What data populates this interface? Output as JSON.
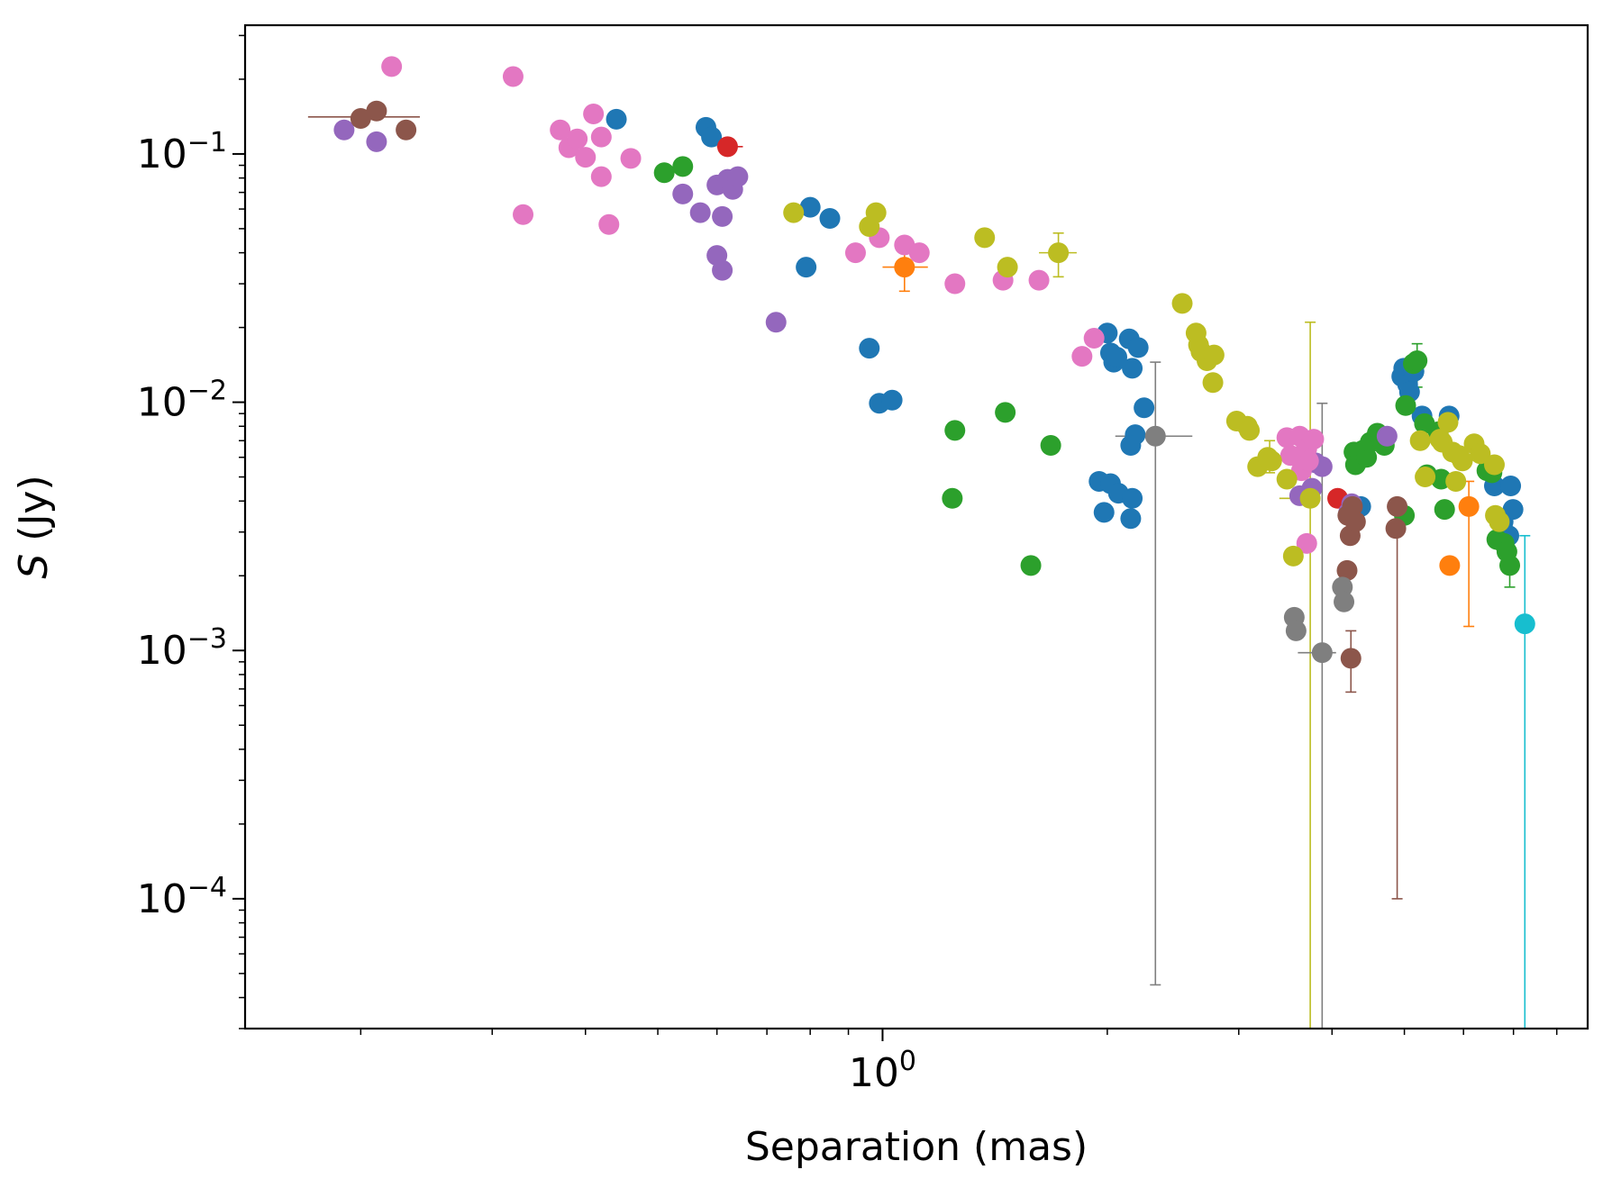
{
  "chart_data": {
    "type": "scatter",
    "title": "",
    "xlabel": "Separation (mas)",
    "ylabel": "S (Jy)",
    "x_scale": "log",
    "y_scale": "log",
    "xlim": [
      0.14,
      8.8
    ],
    "ylim": [
      3e-05,
      0.33
    ],
    "x_major_ticks": [
      {
        "value": 1,
        "base": "10",
        "exp": "0"
      }
    ],
    "y_major_ticks": [
      {
        "value": 0.1,
        "base": "10",
        "exp": "−1"
      },
      {
        "value": 0.01,
        "base": "10",
        "exp": "−2"
      },
      {
        "value": 0.001,
        "base": "10",
        "exp": "−3"
      },
      {
        "value": 0.0001,
        "base": "10",
        "exp": "−4"
      }
    ],
    "grid": false,
    "legend": "none",
    "series": [
      {
        "name": "blue",
        "color": "#1f77b4",
        "points": [
          [
            0.44,
            0.138
          ],
          [
            0.58,
            0.128
          ],
          [
            0.59,
            0.117
          ],
          [
            0.79,
            0.035
          ],
          [
            0.8,
            0.061
          ],
          [
            0.85,
            0.055
          ],
          [
            0.96,
            0.0165
          ],
          [
            0.99,
            0.0099
          ],
          [
            1.03,
            0.0102
          ],
          [
            2.0,
            0.019
          ],
          [
            2.02,
            0.0158
          ],
          [
            2.04,
            0.0145
          ],
          [
            2.06,
            0.0152
          ],
          [
            2.14,
            0.018
          ],
          [
            2.16,
            0.0137
          ],
          [
            2.2,
            0.0166
          ],
          [
            2.24,
            0.0095
          ],
          [
            2.18,
            0.0074
          ],
          [
            2.15,
            0.0067
          ],
          [
            1.95,
            0.0048
          ],
          [
            1.98,
            0.0036
          ],
          [
            2.02,
            0.0047
          ],
          [
            2.07,
            0.0043
          ],
          [
            2.15,
            0.0034
          ],
          [
            2.16,
            0.0041
          ],
          [
            4.96,
            0.0127
          ],
          [
            4.99,
            0.0137
          ],
          [
            5.05,
            0.0118
          ],
          [
            5.08,
            0.011
          ],
          [
            5.15,
            0.0133
          ],
          [
            5.28,
            0.0088
          ],
          [
            5.74,
            0.0088
          ],
          [
            4.37,
            0.0038
          ],
          [
            6.6,
            0.0046
          ],
          [
            6.94,
            0.0046
          ],
          [
            6.99,
            0.0037
          ],
          [
            6.78,
            0.0033
          ],
          [
            6.9,
            0.0029
          ]
        ]
      },
      {
        "name": "orange",
        "color": "#ff7f0e",
        "points": [
          [
            1.07,
            0.035
          ],
          [
            6.1,
            0.0038
          ],
          [
            5.75,
            0.0022
          ]
        ]
      },
      {
        "name": "green",
        "color": "#2ca02c",
        "points": [
          [
            0.51,
            0.084
          ],
          [
            0.54,
            0.089
          ],
          [
            1.25,
            0.0077
          ],
          [
            1.24,
            0.0041
          ],
          [
            1.46,
            0.0091
          ],
          [
            1.58,
            0.0022
          ],
          [
            1.68,
            0.0067
          ],
          [
            4.28,
            0.0063
          ],
          [
            4.3,
            0.0056
          ],
          [
            4.36,
            0.0059
          ],
          [
            4.4,
            0.0064
          ],
          [
            4.45,
            0.006
          ],
          [
            4.5,
            0.0069
          ],
          [
            4.6,
            0.0075
          ],
          [
            4.65,
            0.0071
          ],
          [
            4.7,
            0.0067
          ],
          [
            5.02,
            0.0097
          ],
          [
            5.14,
            0.0143
          ],
          [
            5.2,
            0.0147
          ],
          [
            5.32,
            0.0082
          ],
          [
            5.36,
            0.0051
          ],
          [
            5.55,
            0.0076
          ],
          [
            5.6,
            0.0049
          ],
          [
            5.66,
            0.0037
          ],
          [
            5.0,
            0.0035
          ],
          [
            6.45,
            0.0053
          ],
          [
            6.55,
            0.0052
          ],
          [
            6.65,
            0.0028
          ],
          [
            6.8,
            0.0027
          ],
          [
            6.86,
            0.0025
          ],
          [
            6.92,
            0.0022
          ]
        ]
      },
      {
        "name": "red",
        "color": "#d62728",
        "points": [
          [
            0.62,
            0.107
          ],
          [
            4.07,
            0.0041
          ]
        ]
      },
      {
        "name": "purple",
        "color": "#9467bd",
        "points": [
          [
            0.19,
            0.125
          ],
          [
            0.21,
            0.112
          ],
          [
            0.54,
            0.069
          ],
          [
            0.57,
            0.058
          ],
          [
            0.6,
            0.075
          ],
          [
            0.62,
            0.079
          ],
          [
            0.63,
            0.072
          ],
          [
            0.64,
            0.081
          ],
          [
            0.61,
            0.056
          ],
          [
            0.6,
            0.039
          ],
          [
            0.61,
            0.034
          ],
          [
            0.72,
            0.021
          ],
          [
            3.62,
            0.0042
          ],
          [
            3.76,
            0.0045
          ],
          [
            3.8,
            0.0057
          ],
          [
            3.88,
            0.0055
          ],
          [
            4.21,
            0.0036
          ],
          [
            4.25,
            0.0039
          ],
          [
            4.74,
            0.0073
          ]
        ]
      },
      {
        "name": "brown",
        "color": "#8c564b",
        "points": [
          [
            0.2,
            0.139
          ],
          [
            0.21,
            0.149
          ],
          [
            0.23,
            0.125
          ],
          [
            4.2,
            0.0035
          ],
          [
            4.23,
            0.0029
          ],
          [
            4.26,
            0.0038
          ],
          [
            4.3,
            0.0033
          ],
          [
            4.24,
            0.00093
          ],
          [
            4.89,
            0.0038
          ],
          [
            4.87,
            0.0031
          ],
          [
            4.19,
            0.0021
          ]
        ]
      },
      {
        "name": "pink",
        "color": "#e377c2",
        "points": [
          [
            0.22,
            0.225
          ],
          [
            0.32,
            0.205
          ],
          [
            0.33,
            0.057
          ],
          [
            0.37,
            0.125
          ],
          [
            0.38,
            0.106
          ],
          [
            0.39,
            0.115
          ],
          [
            0.4,
            0.097
          ],
          [
            0.41,
            0.145
          ],
          [
            0.42,
            0.117
          ],
          [
            0.42,
            0.081
          ],
          [
            0.43,
            0.052
          ],
          [
            0.46,
            0.096
          ],
          [
            0.92,
            0.04
          ],
          [
            0.99,
            0.046
          ],
          [
            1.07,
            0.043
          ],
          [
            1.12,
            0.04
          ],
          [
            1.25,
            0.03
          ],
          [
            1.45,
            0.031
          ],
          [
            1.62,
            0.031
          ],
          [
            1.85,
            0.0153
          ],
          [
            1.92,
            0.0181
          ],
          [
            3.48,
            0.0072
          ],
          [
            3.62,
            0.0073
          ],
          [
            3.64,
            0.0053
          ],
          [
            3.66,
            0.0062
          ],
          [
            3.7,
            0.0065
          ],
          [
            3.72,
            0.0058
          ],
          [
            3.78,
            0.0071
          ],
          [
            3.7,
            0.0027
          ],
          [
            3.52,
            0.0061
          ]
        ]
      },
      {
        "name": "gray",
        "color": "#7f7f7f",
        "points": [
          [
            2.32,
            0.0073
          ],
          [
            3.56,
            0.00136
          ],
          [
            3.58,
            0.0012
          ],
          [
            3.88,
            0.00098
          ],
          [
            4.13,
            0.0018
          ],
          [
            4.15,
            0.00157
          ]
        ]
      },
      {
        "name": "olive",
        "color": "#bcbd22",
        "points": [
          [
            0.76,
            0.058
          ],
          [
            0.96,
            0.051
          ],
          [
            0.98,
            0.058
          ],
          [
            1.37,
            0.046
          ],
          [
            1.47,
            0.035
          ],
          [
            1.72,
            0.04
          ],
          [
            2.52,
            0.025
          ],
          [
            2.63,
            0.019
          ],
          [
            2.65,
            0.017
          ],
          [
            2.67,
            0.016
          ],
          [
            2.72,
            0.0147
          ],
          [
            2.78,
            0.0155
          ],
          [
            2.77,
            0.012
          ],
          [
            2.98,
            0.0084
          ],
          [
            3.08,
            0.008
          ],
          [
            3.1,
            0.0077
          ],
          [
            3.18,
            0.0055
          ],
          [
            3.28,
            0.006
          ],
          [
            3.32,
            0.0058
          ],
          [
            3.48,
            0.0049
          ],
          [
            3.55,
            0.0024
          ],
          [
            3.74,
            0.0041
          ],
          [
            5.25,
            0.007
          ],
          [
            5.33,
            0.005
          ],
          [
            5.58,
            0.0071
          ],
          [
            5.62,
            0.0069
          ],
          [
            5.72,
            0.0083
          ],
          [
            5.8,
            0.0063
          ],
          [
            5.92,
            0.0061
          ],
          [
            5.98,
            0.0058
          ],
          [
            6.2,
            0.0068
          ],
          [
            6.32,
            0.0062
          ],
          [
            5.86,
            0.0048
          ],
          [
            6.6,
            0.0056
          ],
          [
            6.62,
            0.0035
          ],
          [
            6.7,
            0.0033
          ]
        ]
      },
      {
        "name": "cyan",
        "color": "#17becf",
        "points": [
          [
            7.25,
            0.00128
          ]
        ]
      }
    ],
    "error_bars": [
      {
        "series": "brown",
        "x": [
          0.17,
          0.24
        ],
        "y": [
          0.141,
          0.141
        ]
      },
      {
        "series": "red",
        "x": [
          0.6,
          0.65
        ],
        "y": [
          0.107,
          0.107
        ]
      },
      {
        "series": "orange",
        "x": [
          1.0,
          1.15
        ],
        "y": [
          0.035,
          0.035
        ]
      },
      {
        "series": "orange",
        "x": [
          1.07,
          1.07
        ],
        "y": [
          0.028,
          0.042
        ]
      },
      {
        "series": "olive",
        "x": [
          1.62,
          1.82
        ],
        "y": [
          0.04,
          0.04
        ]
      },
      {
        "series": "olive",
        "x": [
          1.72,
          1.72
        ],
        "y": [
          0.032,
          0.048
        ]
      },
      {
        "series": "gray",
        "x": [
          2.32,
          2.32
        ],
        "y": [
          4.5e-05,
          0.0145
        ]
      },
      {
        "series": "gray",
        "x": [
          2.05,
          2.6
        ],
        "y": [
          0.0073,
          0.0073
        ]
      },
      {
        "series": "olive",
        "x": [
          3.74,
          3.74
        ],
        "y": [
          2.5e-05,
          0.021
        ]
      },
      {
        "series": "olive",
        "x": [
          3.4,
          3.78
        ],
        "y": [
          0.0041,
          0.0041
        ]
      },
      {
        "series": "gray",
        "x": [
          3.88,
          3.88
        ],
        "y": [
          3e-05,
          0.0099
        ]
      },
      {
        "series": "gray",
        "x": [
          3.6,
          4.05
        ],
        "y": [
          0.00098,
          0.00098
        ]
      },
      {
        "series": "brown",
        "x": [
          4.24,
          4.24
        ],
        "y": [
          0.00068,
          0.0012
        ]
      },
      {
        "series": "brown",
        "x": [
          4.89,
          4.89
        ],
        "y": [
          0.0001,
          0.0039
        ]
      },
      {
        "series": "orange",
        "x": [
          6.1,
          6.1
        ],
        "y": [
          0.00125,
          0.0048
        ]
      },
      {
        "series": "cyan",
        "x": [
          7.25,
          7.25
        ],
        "y": [
          2.5e-05,
          0.0029
        ]
      },
      {
        "series": "cyan",
        "x": [
          7.1,
          7.4
        ],
        "y": [
          0.00128,
          0.00128
        ]
      },
      {
        "series": "green",
        "x": [
          5.2,
          5.2
        ],
        "y": [
          0.0115,
          0.0172
        ]
      },
      {
        "series": "green",
        "x": [
          6.92,
          6.92
        ],
        "y": [
          0.0018,
          0.0027
        ]
      },
      {
        "series": "olive",
        "x": [
          3.3,
          3.3
        ],
        "y": [
          0.0052,
          0.007
        ]
      }
    ]
  }
}
